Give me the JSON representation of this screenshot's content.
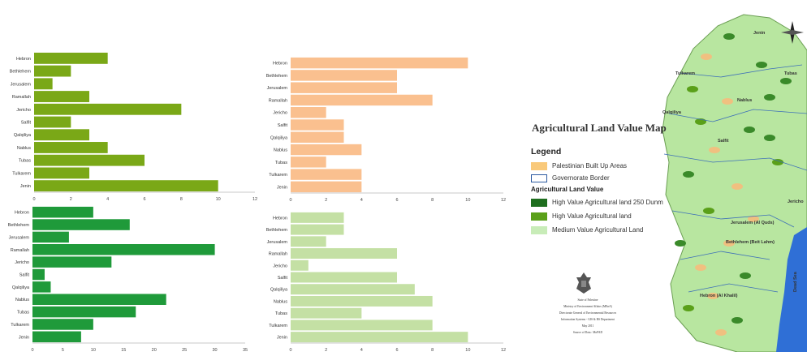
{
  "chart_data": [
    {
      "type": "bar",
      "orientation": "horizontal",
      "color": "#7aa817",
      "categories": [
        "Hebron",
        "Bethlehem",
        "Jerusalem",
        "Ramallah",
        "Jericho",
        "Salfit",
        "Qalqiliya",
        "Nablus",
        "Tubas",
        "Tulkarem",
        "Jenin"
      ],
      "values": [
        4,
        2,
        1,
        3,
        8,
        2,
        3,
        4,
        6,
        3,
        10
      ],
      "xlim": [
        0,
        12
      ],
      "xticks": [
        0,
        2,
        4,
        6,
        8,
        10,
        12
      ],
      "title": "",
      "xlabel": "",
      "ylabel": ""
    },
    {
      "type": "bar",
      "orientation": "horizontal",
      "color": "#fac08f",
      "categories": [
        "Hebron",
        "Bethlehem",
        "Jerusalem",
        "Ramallah",
        "Jericho",
        "Salfit",
        "Qalqiliya",
        "Nablus",
        "Tubas",
        "Tulkarem",
        "Jenin"
      ],
      "values": [
        10,
        6,
        6,
        8,
        2,
        3,
        3,
        4,
        2,
        4,
        4
      ],
      "xlim": [
        0,
        12
      ],
      "xticks": [
        0,
        2,
        4,
        6,
        8,
        10,
        12
      ],
      "title": "",
      "xlabel": "",
      "ylabel": ""
    },
    {
      "type": "bar",
      "orientation": "horizontal",
      "color": "#1f9a3a",
      "categories": [
        "Hebron",
        "Bethlehem",
        "Jerusalem",
        "Ramallah",
        "Jericho",
        "Salfit",
        "Qalqiliya",
        "Nablus",
        "Tubas",
        "Tulkarem",
        "Jenin"
      ],
      "values": [
        10,
        16,
        6,
        30,
        13,
        2,
        3,
        22,
        17,
        10,
        8
      ],
      "xlim": [
        0,
        35
      ],
      "xticks": [
        0,
        5,
        10,
        15,
        20,
        25,
        30,
        35
      ],
      "title": "",
      "xlabel": "",
      "ylabel": ""
    },
    {
      "type": "bar",
      "orientation": "horizontal",
      "color": "#c4e0a4",
      "categories": [
        "Hebron",
        "Bethlehem",
        "Jerusalem",
        "Ramallah",
        "Jericho",
        "Salfit",
        "Qalqiliya",
        "Nablus",
        "Tubas",
        "Tulkarem",
        "Jenin"
      ],
      "values": [
        3,
        3,
        2,
        6,
        1,
        6,
        7,
        8,
        4,
        8,
        10
      ],
      "xlim": [
        0,
        12
      ],
      "xticks": [
        0,
        2,
        4,
        6,
        8,
        10,
        12
      ],
      "title": "",
      "xlabel": "",
      "ylabel": ""
    }
  ],
  "map": {
    "title": "Agricultural Land Value Map",
    "legend_heading": "Legend",
    "legend_top": [
      {
        "label": "Palestinian Built Up Areas",
        "color": "#f9c97a",
        "border": "#f9c97a"
      },
      {
        "label": "Governorate Border",
        "color": "#ffffff",
        "border": "#2c5aa0"
      }
    ],
    "legend_subheading": "Agricultural Land Value",
    "legend_value": [
      {
        "label": "High Value Agricultural land 250 Dunm",
        "color": "#1e6e1e",
        "border": "#1e6e1e"
      },
      {
        "label": "High Value Agricultural land",
        "color": "#5aa019",
        "border": "#5aa019"
      },
      {
        "label": "Medium Value Agricultural Land",
        "color": "#c8ecb8",
        "border": "#c8ecb8"
      }
    ],
    "city_labels": [
      "Jenin",
      "Tubas",
      "Tulkarem",
      "Nablus",
      "Qalqiliya",
      "Salfit",
      "Jericho",
      "Jerusalem (Al Quds)",
      "Bethlehem (Beit Lahm)",
      "Hebron (Al Khalil)",
      "Dead Sea"
    ],
    "footer_lines": [
      "State of Palestine",
      "Ministry of Environment Affairs (MEnA)",
      "Directorate General of Environmental Resources",
      "Information Systems - GIS & RS Department",
      "May 2011",
      "Source of Data : MoPAD"
    ],
    "colors": {
      "land": "#b8e6a0",
      "sea": "#2f6fd6",
      "border": "#3d6fb8",
      "built": "#f0c080"
    }
  }
}
